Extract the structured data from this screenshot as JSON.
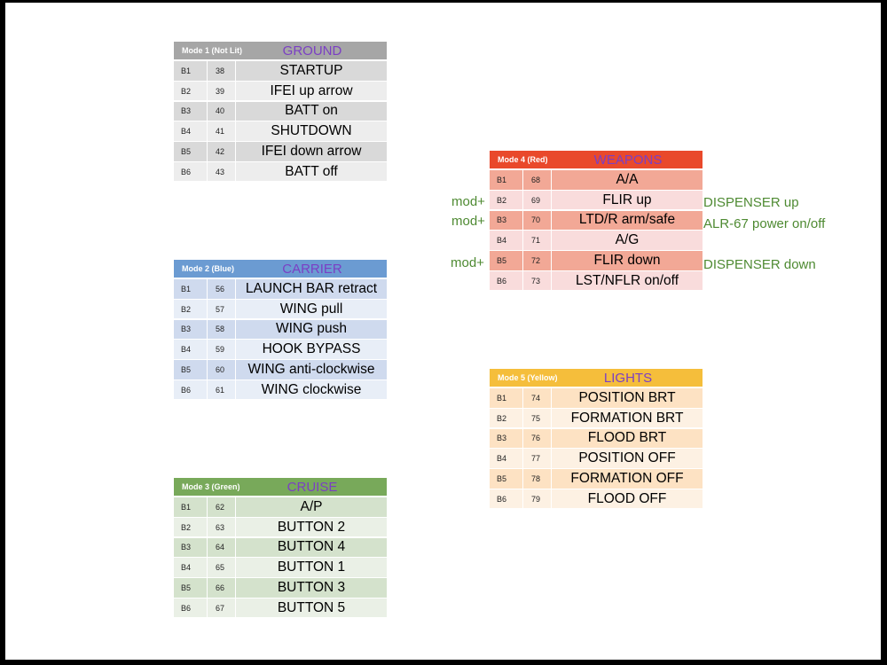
{
  "tables": [
    {
      "mode": "Mode 1 (Not Lit)",
      "title": "GROUND",
      "colors": {
        "header": "#a6a6a6",
        "dark": "#d9d9d9",
        "light": "#ededed"
      },
      "rows": [
        [
          "B1",
          "38",
          "STARTUP"
        ],
        [
          "B2",
          "39",
          "IFEI up arrow"
        ],
        [
          "B3",
          "40",
          "BATT on"
        ],
        [
          "B4",
          "41",
          "SHUTDOWN"
        ],
        [
          "B5",
          "42",
          "IFEI down arrow"
        ],
        [
          "B6",
          "43",
          "BATT off"
        ]
      ]
    },
    {
      "mode": "Mode 2 (Blue)",
      "title": "CARRIER",
      "colors": {
        "header": "#6b9bd2",
        "dark": "#cfdaee",
        "light": "#e8eef7"
      },
      "rows": [
        [
          "B1",
          "56",
          "LAUNCH BAR retract"
        ],
        [
          "B2",
          "57",
          "WING pull"
        ],
        [
          "B3",
          "58",
          "WING push"
        ],
        [
          "B4",
          "59",
          "HOOK BYPASS"
        ],
        [
          "B5",
          "60",
          "WING anti-clockwise"
        ],
        [
          "B6",
          "61",
          "WING clockwise"
        ]
      ]
    },
    {
      "mode": "Mode 3 (Green)",
      "title": "CRUISE",
      "colors": {
        "header": "#78a95a",
        "dark": "#d4e2cc",
        "light": "#eaf0e6"
      },
      "rows": [
        [
          "B1",
          "62",
          "A/P"
        ],
        [
          "B2",
          "63",
          "BUTTON 2"
        ],
        [
          "B3",
          "64",
          "BUTTON 4"
        ],
        [
          "B4",
          "65",
          "BUTTON 1"
        ],
        [
          "B5",
          "66",
          "BUTTON 3"
        ],
        [
          "B6",
          "67",
          "BUTTON 5"
        ]
      ]
    },
    {
      "mode": "Mode 4 (Red)",
      "title": "WEAPONS",
      "colors": {
        "header": "#e9492b",
        "dark": "#f2a896",
        "light": "#f9dcdc"
      },
      "rows": [
        [
          "B1",
          "68",
          "A/A"
        ],
        [
          "B2",
          "69",
          "FLIR up"
        ],
        [
          "B3",
          "70",
          "LTD/R arm/safe"
        ],
        [
          "B4",
          "71",
          "A/G"
        ],
        [
          "B5",
          "72",
          "FLIR down"
        ],
        [
          "B6",
          "73",
          "LST/NFLR on/off"
        ]
      ]
    },
    {
      "mode": "Mode 5 (Yellow)",
      "title": "LIGHTS",
      "colors": {
        "header": "#f5be3b",
        "dark": "#fde2c3",
        "light": "#fdf1e3"
      },
      "rows": [
        [
          "B1",
          "74",
          "POSITION BRT"
        ],
        [
          "B2",
          "75",
          "FORMATION BRT"
        ],
        [
          "B3",
          "76",
          "FLOOD BRT"
        ],
        [
          "B4",
          "77",
          "POSITION OFF"
        ],
        [
          "B5",
          "78",
          "FORMATION OFF"
        ],
        [
          "B6",
          "79",
          "FLOOD OFF"
        ]
      ]
    }
  ],
  "annotations": {
    "mod_b2": "mod+",
    "mod_b3": "mod+",
    "mod_b5": "mod+",
    "b2": "DISPENSER up",
    "b3": "ALR-67 power on/off",
    "b5": "DISPENSER down"
  }
}
